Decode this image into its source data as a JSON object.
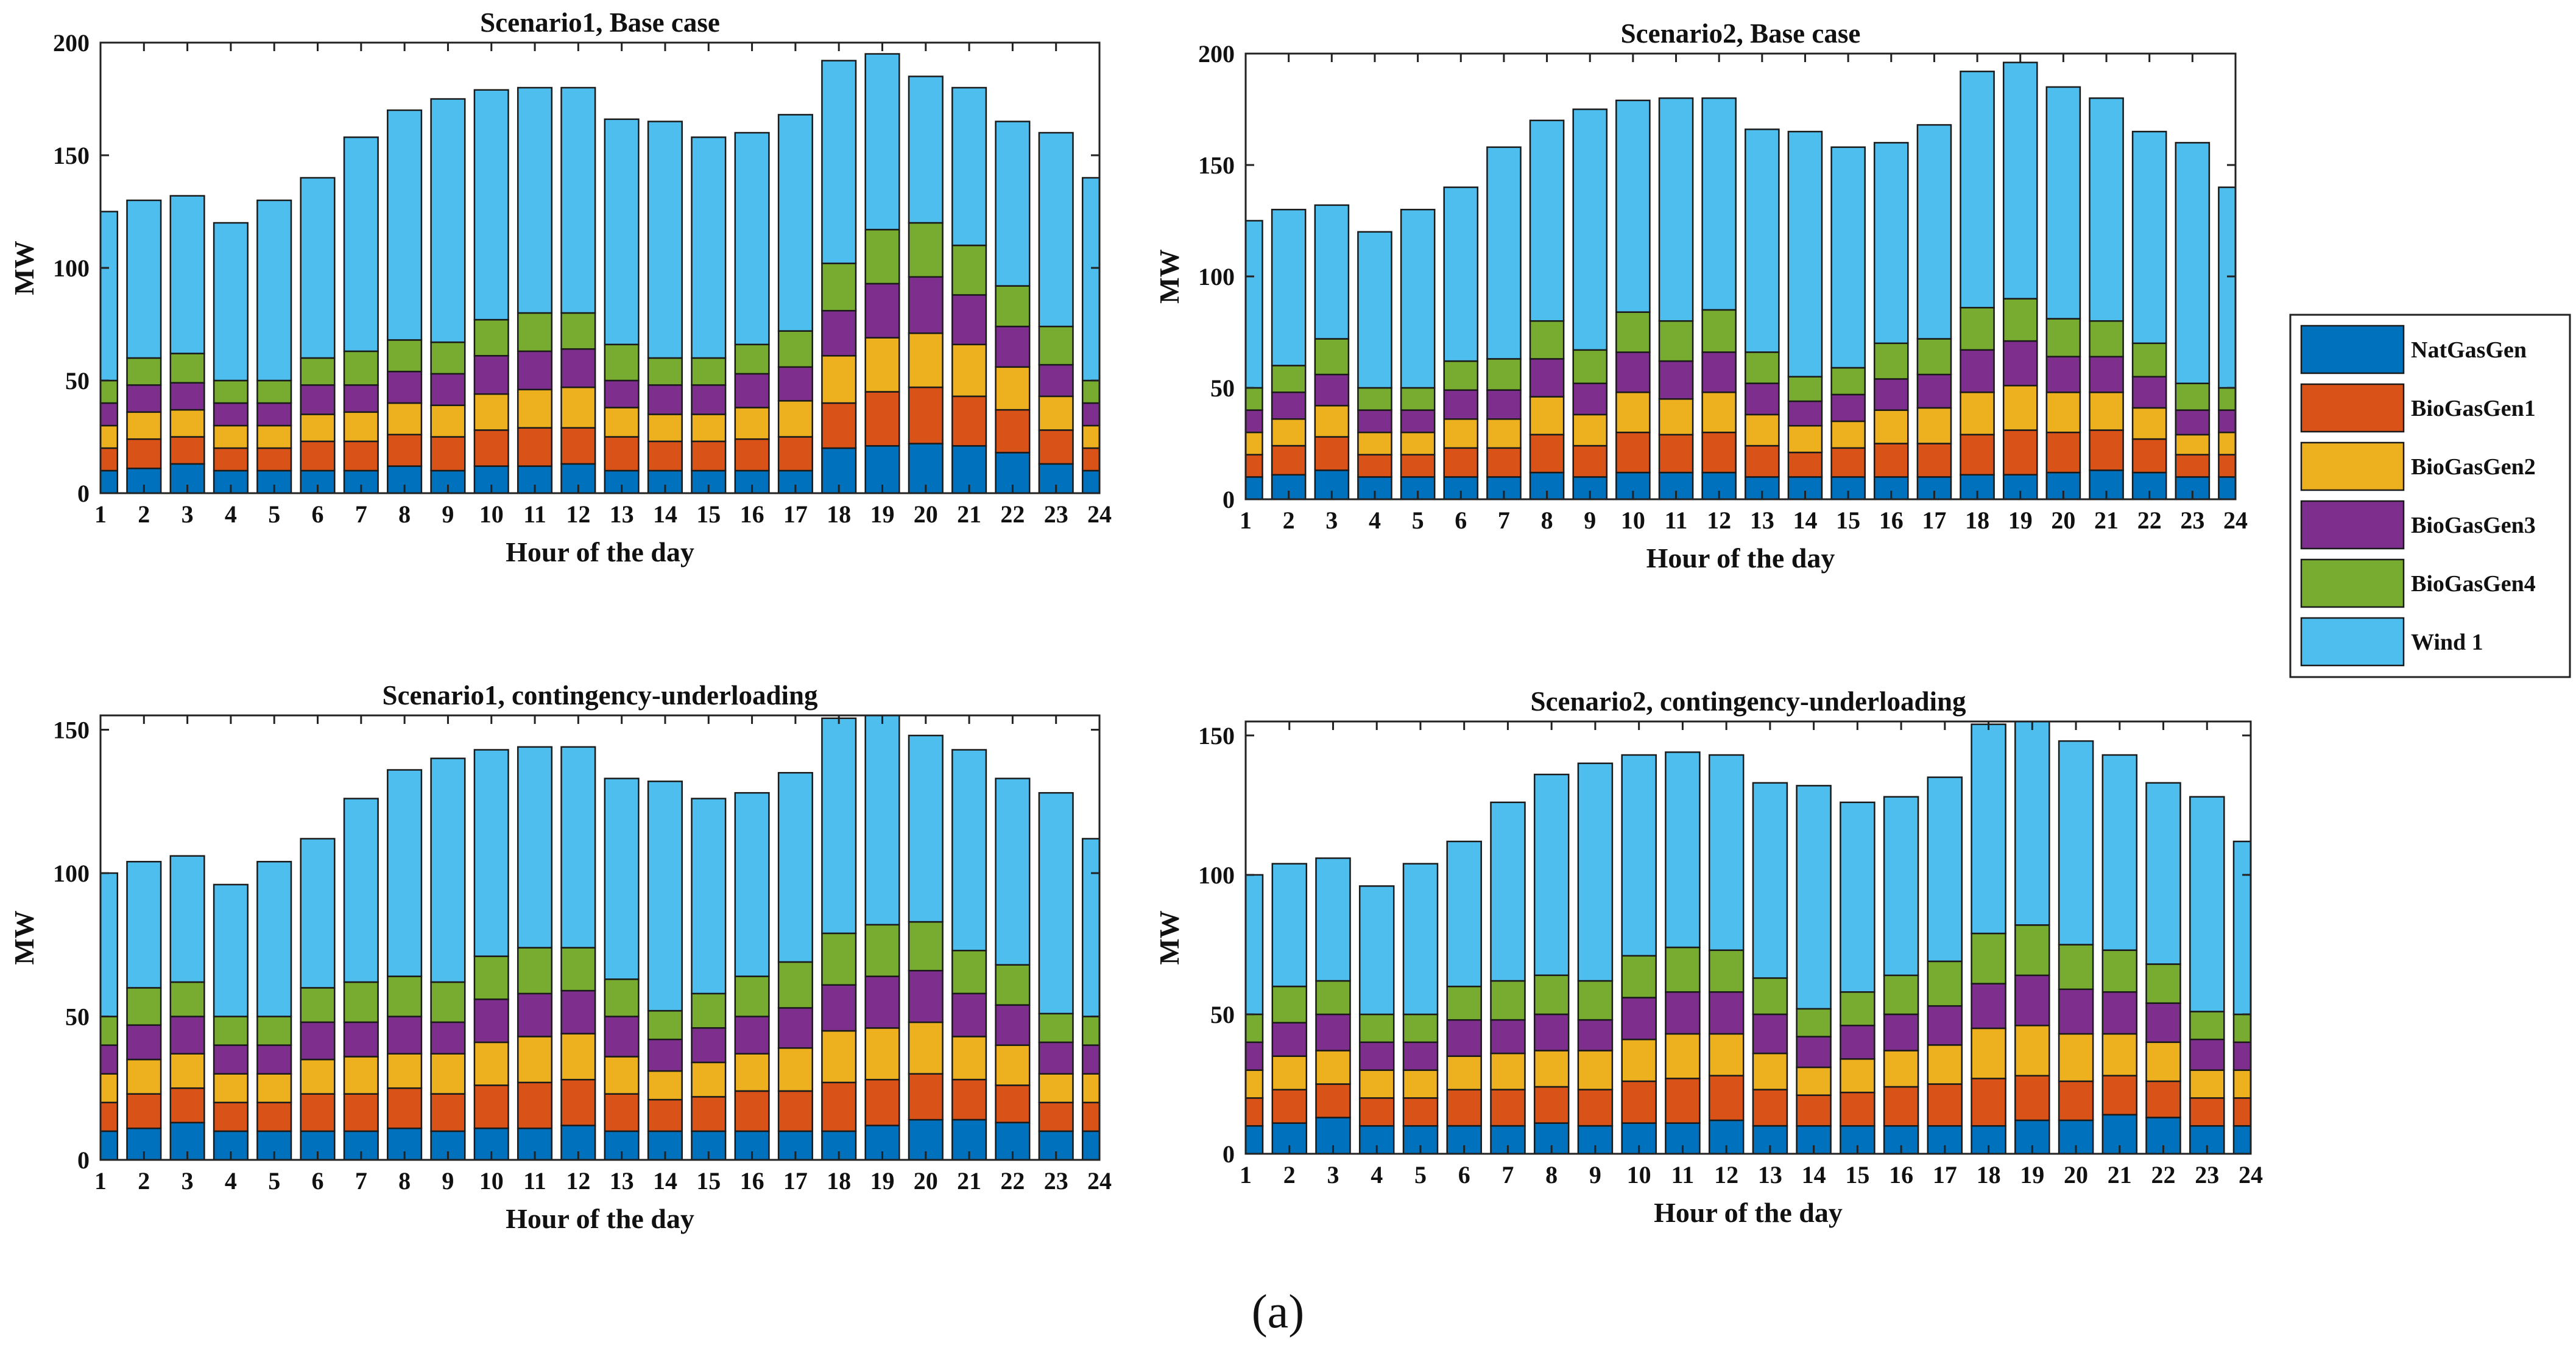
{
  "figure": {
    "caption": "(a)"
  },
  "legend": {
    "entries": [
      "NatGasGen",
      "BioGasGen1",
      "BioGasGen2",
      "BioGasGen3",
      "BioGasGen4",
      "Wind 1"
    ],
    "colors": [
      "#0072BD",
      "#D95319",
      "#EDB120",
      "#7E2F8E",
      "#77AC30",
      "#4DBEEE"
    ]
  },
  "chart_data": [
    {
      "type": "bar",
      "stacked": true,
      "title": "Scenario1, Base case",
      "xlabel": "Hour of the day",
      "ylabel": "MW",
      "ylim": [
        0,
        200
      ],
      "yticks": [
        0,
        50,
        100,
        150,
        200
      ],
      "categories": [
        "1",
        "2",
        "3",
        "4",
        "5",
        "6",
        "7",
        "8",
        "9",
        "10",
        "11",
        "12",
        "13",
        "14",
        "15",
        "16",
        "17",
        "18",
        "19",
        "20",
        "21",
        "22",
        "23",
        "24"
      ],
      "series": [
        {
          "name": "NatGasGen",
          "values": [
            10,
            11,
            13,
            10,
            10,
            10,
            10,
            12,
            10,
            12,
            12,
            13,
            10,
            10,
            10,
            10,
            10,
            20,
            21,
            22,
            21,
            18,
            13,
            10
          ]
        },
        {
          "name": "BioGasGen1",
          "values": [
            10,
            13,
            12,
            10,
            10,
            13,
            13,
            14,
            15,
            16,
            17,
            16,
            15,
            13,
            13,
            14,
            15,
            20,
            24,
            25,
            22,
            19,
            15,
            10
          ]
        },
        {
          "name": "BioGasGen2",
          "values": [
            10,
            12,
            12,
            10,
            10,
            12,
            13,
            14,
            14,
            16,
            17,
            18,
            13,
            12,
            12,
            14,
            16,
            21,
            24,
            24,
            23,
            19,
            15,
            10
          ]
        },
        {
          "name": "BioGasGen3",
          "values": [
            10,
            12,
            12,
            10,
            10,
            13,
            12,
            14,
            14,
            17,
            17,
            17,
            12,
            13,
            13,
            15,
            15,
            20,
            24,
            25,
            22,
            18,
            14,
            10
          ]
        },
        {
          "name": "BioGasGen4",
          "values": [
            10,
            12,
            13,
            10,
            10,
            12,
            15,
            14,
            14,
            16,
            17,
            16,
            16,
            12,
            12,
            13,
            16,
            21,
            24,
            24,
            22,
            18,
            17,
            10
          ]
        },
        {
          "name": "Wind 1",
          "values": [
            75,
            70,
            70,
            70,
            80,
            80,
            95,
            102,
            108,
            102,
            100,
            100,
            100,
            105,
            98,
            94,
            96,
            90,
            78,
            65,
            70,
            73,
            86,
            90
          ]
        }
      ]
    },
    {
      "type": "bar",
      "stacked": true,
      "title": "Scenario2, Base case",
      "xlabel": "Hour of the day",
      "ylabel": "MW",
      "ylim": [
        0,
        200
      ],
      "yticks": [
        0,
        50,
        100,
        150,
        200
      ],
      "categories": [
        "1",
        "2",
        "3",
        "4",
        "5",
        "6",
        "7",
        "8",
        "9",
        "10",
        "11",
        "12",
        "13",
        "14",
        "15",
        "16",
        "17",
        "18",
        "19",
        "20",
        "21",
        "22",
        "23",
        "24"
      ],
      "series": [
        {
          "name": "NatGasGen",
          "values": [
            10,
            11,
            13,
            10,
            10,
            10,
            10,
            12,
            10,
            12,
            12,
            12,
            10,
            10,
            10,
            10,
            10,
            11,
            11,
            12,
            13,
            12,
            10,
            10
          ]
        },
        {
          "name": "BioGasGen1",
          "values": [
            10,
            13,
            15,
            10,
            10,
            13,
            13,
            17,
            14,
            18,
            17,
            18,
            14,
            11,
            13,
            15,
            15,
            18,
            20,
            18,
            18,
            15,
            10,
            10
          ]
        },
        {
          "name": "BioGasGen2",
          "values": [
            10,
            12,
            14,
            10,
            10,
            13,
            13,
            17,
            14,
            18,
            16,
            18,
            14,
            12,
            12,
            15,
            16,
            19,
            20,
            18,
            17,
            14,
            9,
            10
          ]
        },
        {
          "name": "BioGasGen3",
          "values": [
            10,
            12,
            14,
            10,
            10,
            13,
            13,
            17,
            14,
            18,
            17,
            18,
            14,
            11,
            12,
            14,
            15,
            19,
            20,
            16,
            16,
            14,
            11,
            10
          ]
        },
        {
          "name": "BioGasGen4",
          "values": [
            10,
            12,
            16,
            10,
            10,
            13,
            14,
            17,
            15,
            18,
            18,
            19,
            14,
            11,
            12,
            16,
            16,
            19,
            19,
            17,
            16,
            15,
            12,
            10
          ]
        },
        {
          "name": "Wind 1",
          "values": [
            75,
            70,
            60,
            70,
            80,
            78,
            95,
            90,
            108,
            95,
            100,
            95,
            100,
            110,
            99,
            90,
            96,
            106,
            106,
            104,
            100,
            95,
            108,
            90
          ]
        }
      ]
    },
    {
      "type": "bar",
      "stacked": true,
      "title": "Scenario1, contingency-underloading",
      "xlabel": "Hour of the day",
      "ylabel": "MW",
      "ylim": [
        0,
        155
      ],
      "yticks": [
        0,
        50,
        100,
        150
      ],
      "categories": [
        "1",
        "2",
        "3",
        "4",
        "5",
        "6",
        "7",
        "8",
        "9",
        "10",
        "11",
        "12",
        "13",
        "14",
        "15",
        "16",
        "17",
        "18",
        "19",
        "20",
        "21",
        "22",
        "23",
        "24"
      ],
      "series": [
        {
          "name": "NatGasGen",
          "values": [
            10,
            11,
            13,
            10,
            10,
            10,
            10,
            11,
            10,
            11,
            11,
            12,
            10,
            10,
            10,
            10,
            10,
            10,
            12,
            14,
            14,
            13,
            10,
            10
          ]
        },
        {
          "name": "BioGasGen1",
          "values": [
            10,
            12,
            12,
            10,
            10,
            13,
            13,
            14,
            13,
            15,
            16,
            16,
            13,
            11,
            12,
            14,
            14,
            17,
            16,
            16,
            14,
            13,
            10,
            10
          ]
        },
        {
          "name": "BioGasGen2",
          "values": [
            10,
            12,
            12,
            10,
            10,
            12,
            13,
            12,
            14,
            15,
            16,
            16,
            13,
            10,
            12,
            13,
            15,
            18,
            18,
            18,
            15,
            14,
            10,
            10
          ]
        },
        {
          "name": "BioGasGen3",
          "values": [
            10,
            12,
            13,
            10,
            10,
            13,
            12,
            13,
            11,
            15,
            15,
            15,
            14,
            11,
            12,
            13,
            14,
            16,
            18,
            18,
            15,
            14,
            11,
            10
          ]
        },
        {
          "name": "BioGasGen4",
          "values": [
            10,
            13,
            12,
            10,
            10,
            12,
            14,
            14,
            14,
            15,
            16,
            15,
            13,
            10,
            12,
            14,
            16,
            18,
            18,
            17,
            15,
            14,
            10,
            10
          ]
        },
        {
          "name": "Wind 1",
          "values": [
            50,
            44,
            44,
            46,
            54,
            52,
            64,
            72,
            78,
            72,
            70,
            70,
            70,
            80,
            68,
            64,
            66,
            75,
            75,
            65,
            70,
            65,
            77,
            62
          ]
        }
      ]
    },
    {
      "type": "bar",
      "stacked": true,
      "title": "Scenario2, contingency-underloading",
      "xlabel": "Hour of the day",
      "ylabel": "MW",
      "ylim": [
        0,
        155
      ],
      "yticks": [
        0,
        50,
        100,
        150
      ],
      "categories": [
        "1",
        "2",
        "3",
        "4",
        "5",
        "6",
        "7",
        "8",
        "9",
        "10",
        "11",
        "12",
        "13",
        "14",
        "15",
        "16",
        "17",
        "18",
        "19",
        "20",
        "21",
        "22",
        "23",
        "24"
      ],
      "series": [
        {
          "name": "NatGasGen",
          "values": [
            10,
            11,
            13,
            10,
            10,
            10,
            10,
            11,
            10,
            11,
            11,
            12,
            10,
            10,
            10,
            10,
            10,
            10,
            12,
            12,
            14,
            13,
            10,
            10
          ]
        },
        {
          "name": "BioGasGen1",
          "values": [
            10,
            12,
            12,
            10,
            10,
            13,
            13,
            13,
            13,
            15,
            16,
            16,
            13,
            11,
            12,
            14,
            15,
            17,
            16,
            14,
            14,
            13,
            10,
            10
          ]
        },
        {
          "name": "BioGasGen2",
          "values": [
            10,
            12,
            12,
            10,
            10,
            12,
            13,
            13,
            14,
            15,
            16,
            15,
            13,
            10,
            12,
            13,
            14,
            18,
            18,
            17,
            15,
            14,
            10,
            10
          ]
        },
        {
          "name": "BioGasGen3",
          "values": [
            10,
            12,
            13,
            10,
            10,
            13,
            12,
            13,
            11,
            15,
            15,
            15,
            14,
            11,
            12,
            13,
            14,
            16,
            18,
            16,
            15,
            14,
            11,
            10
          ]
        },
        {
          "name": "BioGasGen4",
          "values": [
            10,
            13,
            12,
            10,
            10,
            12,
            14,
            14,
            14,
            15,
            16,
            15,
            13,
            10,
            12,
            14,
            16,
            18,
            18,
            16,
            15,
            14,
            10,
            10
          ]
        },
        {
          "name": "Wind 1",
          "values": [
            50,
            44,
            44,
            46,
            54,
            52,
            64,
            72,
            78,
            72,
            70,
            70,
            70,
            80,
            68,
            64,
            66,
            75,
            75,
            73,
            70,
            65,
            77,
            62
          ]
        }
      ]
    }
  ]
}
